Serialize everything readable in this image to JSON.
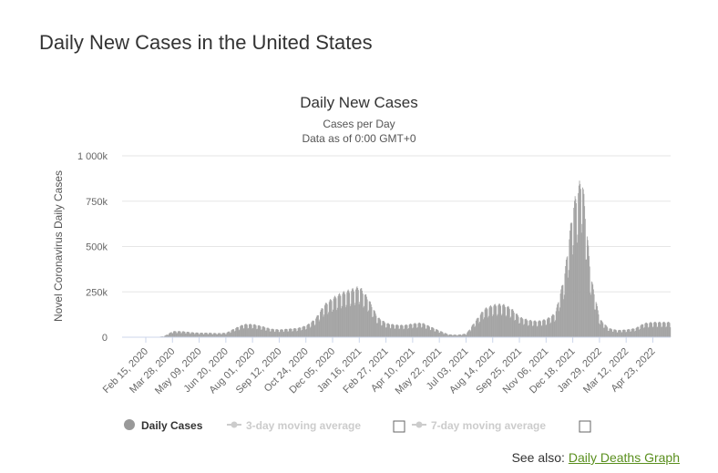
{
  "page": {
    "title": "Daily New Cases in the United States"
  },
  "colors": {
    "bars": "#a4a4a4",
    "legend_inactive": "#cccccc",
    "grid": "#e6e6e6",
    "link": "#5a8f1e"
  },
  "chart_data": {
    "type": "bar",
    "title": "Daily New Cases",
    "subtitle_lines": [
      "Cases per Day",
      "Data as of 0:00 GMT+0"
    ],
    "ylabel": "Novel Coronavirus Daily Cases",
    "xlabel": "",
    "ylim": [
      0,
      1000000
    ],
    "y_ticks": [
      {
        "value": 0,
        "label": "0"
      },
      {
        "value": 250000,
        "label": "250k"
      },
      {
        "value": 500000,
        "label": "500k"
      },
      {
        "value": 750000,
        "label": "750k"
      },
      {
        "value": 1000000,
        "label": "1 000k"
      }
    ],
    "x_tick_labels": [
      "Feb 15, 2020",
      "Mar 28, 2020",
      "May 09, 2020",
      "Jun 20, 2020",
      "Aug 01, 2020",
      "Sep 12, 2020",
      "Oct 24, 2020",
      "Dec 05, 2020",
      "Jan 16, 2021",
      "Feb 27, 2021",
      "Apr 10, 2021",
      "May 22, 2021",
      "Jul 03, 2021",
      "Aug 14, 2021",
      "Sep 25, 2021",
      "Nov 06, 2021",
      "Dec 18, 2021",
      "Jan 29, 2022",
      "Mar 12, 2022",
      "Apr 23, 2022"
    ],
    "tick_interval_days": 42,
    "total_days": 826,
    "series": [
      {
        "name": "Daily Cases",
        "interval_days": 14,
        "start_day": 0,
        "note": "Daily bars reconstructed from approximate biweekly levels with weekly reporting pattern",
        "values": [
          0,
          0,
          5000,
          30000,
          30000,
          25000,
          22000,
          22000,
          20000,
          22000,
          45000,
          65000,
          65000,
          55000,
          42000,
          38000,
          42000,
          45000,
          58000,
          90000,
          160000,
          195000,
          220000,
          235000,
          250000,
          190000,
          100000,
          70000,
          62000,
          60000,
          68000,
          72000,
          52000,
          32000,
          14000,
          12000,
          18000,
          80000,
          140000,
          160000,
          165000,
          145000,
          100000,
          85000,
          80000,
          90000,
          120000,
          300000,
          650000,
          800000,
          300000,
          90000,
          45000,
          35000,
          38000,
          45000,
          70000,
          75000
        ]
      },
      {
        "name": "3-day moving average",
        "active": false
      },
      {
        "name": "7-day moving average",
        "active": false
      }
    ]
  },
  "legend": {
    "daily": "Daily Cases",
    "ma3": "3-day moving average",
    "ma7": "7-day moving average"
  },
  "footer": {
    "see_also_label": "See also:",
    "link_text": "Daily Deaths Graph"
  }
}
